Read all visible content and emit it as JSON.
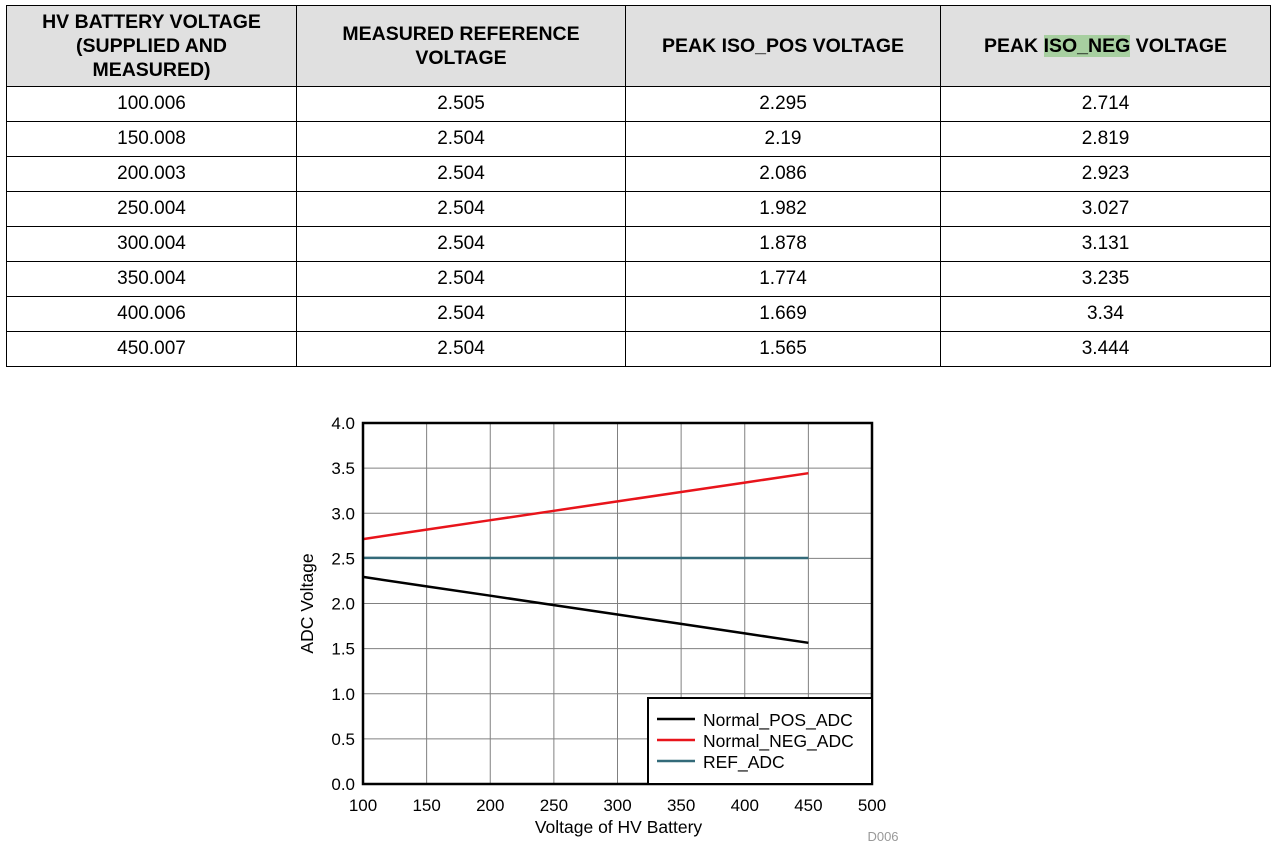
{
  "table": {
    "headers": [
      [
        "HV BATTERY VOLTAGE",
        "(SUPPLIED AND",
        "MEASURED)"
      ],
      [
        "MEASURED REFERENCE",
        "VOLTAGE"
      ],
      [
        "PEAK ISO_POS VOLTAGE"
      ],
      [
        "PEAK ISO_NEG VOLTAGE"
      ]
    ],
    "highlight_text": "ISO_NEG",
    "highlight_color": "#a7cfa0",
    "rows": [
      [
        "100.006",
        "2.505",
        "2.295",
        "2.714"
      ],
      [
        "150.008",
        "2.504",
        "2.19",
        "2.819"
      ],
      [
        "200.003",
        "2.504",
        "2.086",
        "2.923"
      ],
      [
        "250.004",
        "2.504",
        "1.982",
        "3.027"
      ],
      [
        "300.004",
        "2.504",
        "1.878",
        "3.131"
      ],
      [
        "350.004",
        "2.504",
        "1.774",
        "3.235"
      ],
      [
        "400.006",
        "2.504",
        "1.669",
        "3.34"
      ],
      [
        "450.007",
        "2.504",
        "1.565",
        "3.444"
      ]
    ]
  },
  "chart_data": {
    "type": "line",
    "title": "",
    "xlabel": "Voltage of HV Battery",
    "ylabel": "ADC Voltage",
    "xlim": [
      100,
      500
    ],
    "ylim": [
      0,
      4.0
    ],
    "xticks": [
      100,
      150,
      200,
      250,
      300,
      350,
      400,
      450,
      500
    ],
    "yticks": [
      "0.0",
      "0.5",
      "1.0",
      "1.5",
      "2.0",
      "2.5",
      "3.0",
      "3.5",
      "4.0"
    ],
    "grid": true,
    "legend_position": "bottom-right",
    "figure_id": "D006",
    "series": [
      {
        "name": "Normal_POS_ADC",
        "color": "#000000",
        "x": [
          100.006,
          150.008,
          200.003,
          250.004,
          300.004,
          350.004,
          400.006,
          450.007
        ],
        "y": [
          2.295,
          2.19,
          2.086,
          1.982,
          1.878,
          1.774,
          1.669,
          1.565
        ]
      },
      {
        "name": "Normal_NEG_ADC",
        "color": "#e8141b",
        "x": [
          100.006,
          150.008,
          200.003,
          250.004,
          300.004,
          350.004,
          400.006,
          450.007
        ],
        "y": [
          2.714,
          2.819,
          2.923,
          3.027,
          3.131,
          3.235,
          3.34,
          3.444
        ]
      },
      {
        "name": "REF_ADC",
        "color": "#336a79",
        "x": [
          100.006,
          150.008,
          200.003,
          250.004,
          300.004,
          350.004,
          400.006,
          450.007
        ],
        "y": [
          2.505,
          2.504,
          2.504,
          2.504,
          2.504,
          2.504,
          2.504,
          2.504
        ]
      }
    ]
  }
}
